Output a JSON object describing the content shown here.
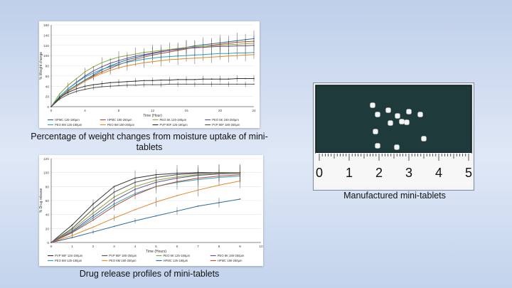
{
  "captions": {
    "moisture": "Percentage of weight changes from moisture uptake of mini-tablets",
    "release": "Drug release profiles of mini-tablets",
    "photo": "Manufactured mini-tablets"
  },
  "photo": {
    "ruler_labels": [
      "0",
      "1",
      "2",
      "3",
      "4",
      "5"
    ],
    "tablet_count": 13
  },
  "chart_data": [
    {
      "type": "line",
      "xlabel": "Time (Hour)",
      "ylabel": "% Weight change",
      "xlim": [
        0,
        24
      ],
      "ylim": [
        0,
        160
      ],
      "x_ticks": [
        0,
        4,
        8,
        12,
        16,
        20,
        24
      ],
      "y_ticks": [
        0,
        20,
        40,
        60,
        80,
        100,
        120,
        140,
        160
      ],
      "error_bars": true,
      "legend_position": "bottom",
      "x": [
        0,
        1,
        2,
        3,
        4,
        5,
        6,
        7,
        8,
        9,
        10,
        11,
        12,
        13,
        14,
        15,
        16,
        17,
        18,
        19,
        20,
        21,
        22,
        23,
        24
      ],
      "series": [
        {
          "name": "HPMC 125-180µm",
          "color": "#2e6b9e",
          "values": [
            0,
            18,
            32,
            42,
            52,
            62,
            72,
            80,
            86,
            92,
            96,
            100,
            104,
            107,
            110,
            113,
            116,
            119,
            121,
            123,
            125,
            127,
            129,
            131,
            133
          ]
        },
        {
          "name": "HPMC 180-250µm",
          "color": "#b04a3a",
          "values": [
            0,
            17,
            30,
            40,
            50,
            60,
            68,
            75,
            82,
            88,
            93,
            97,
            101,
            104,
            107,
            110,
            113,
            116,
            118,
            120,
            122,
            124,
            126,
            127,
            128
          ]
        },
        {
          "name": "PEO 8K 125-180µm",
          "color": "#8ba63a",
          "values": [
            0,
            25,
            42,
            55,
            68,
            78,
            86,
            92,
            97,
            100,
            103,
            106,
            108,
            110,
            112,
            114,
            116,
            117,
            118,
            119,
            120,
            121,
            122,
            123,
            124
          ]
        },
        {
          "name": "PEO 8K 180-250µm",
          "color": "#6a4f9a",
          "values": [
            0,
            20,
            35,
            48,
            60,
            70,
            78,
            85,
            90,
            95,
            99,
            102,
            105,
            108,
            110,
            112,
            114,
            115,
            116,
            117,
            118,
            118,
            119,
            119,
            120
          ]
        },
        {
          "name": "PEO 8M 125-180µm",
          "color": "#2fa0b8",
          "values": [
            0,
            20,
            35,
            47,
            58,
            66,
            73,
            78,
            83,
            87,
            90,
            93,
            95,
            97,
            98,
            99,
            100,
            101,
            102,
            103,
            104,
            104,
            105,
            105,
            106
          ]
        },
        {
          "name": "PEO 8M 180-250µm",
          "color": "#e08a2a",
          "values": [
            0,
            18,
            30,
            40,
            50,
            58,
            65,
            71,
            76,
            80,
            83,
            86,
            88,
            90,
            92,
            93,
            94,
            95,
            96,
            97,
            98,
            99,
            100,
            101,
            102
          ]
        },
        {
          "name": "PVP 90F 125-180µm",
          "color": "#333333",
          "values": [
            0,
            18,
            28,
            35,
            40,
            43,
            45,
            47,
            48,
            49,
            50,
            51,
            51,
            52,
            52,
            53,
            53,
            53,
            54,
            54,
            54,
            54,
            55,
            55,
            55
          ]
        },
        {
          "name": "PVP 90F 180-250µm",
          "color": "#555555",
          "values": [
            0,
            15,
            24,
            30,
            34,
            37,
            39,
            40,
            41,
            42,
            42,
            43,
            43,
            43,
            44,
            44,
            44,
            44,
            44,
            44,
            44,
            44,
            44,
            44,
            44
          ]
        }
      ]
    },
    {
      "type": "line",
      "xlabel": "Time (Hours)",
      "ylabel": "% Drug release",
      "xlim": [
        0,
        10
      ],
      "ylim": [
        0,
        120
      ],
      "x_ticks": [
        0,
        1,
        2,
        3,
        4,
        5,
        6,
        7,
        8,
        9,
        10
      ],
      "y_ticks": [
        0,
        20,
        40,
        60,
        80,
        100,
        120
      ],
      "error_bars": true,
      "legend_position": "bottom",
      "x": [
        0,
        1,
        2,
        3,
        4,
        5,
        6,
        7,
        8,
        9
      ],
      "series": [
        {
          "name": "PVP 90F 125-180µm",
          "color": "#333333",
          "values": [
            0,
            25,
            55,
            80,
            92,
            97,
            99,
            100,
            100,
            100
          ]
        },
        {
          "name": "PVP 90F 180-250µm",
          "color": "#555555",
          "values": [
            0,
            20,
            48,
            72,
            86,
            93,
            97,
            99,
            100,
            100
          ]
        },
        {
          "name": "PEO 8K 125-180µm",
          "color": "#8ba63a",
          "values": [
            0,
            18,
            42,
            65,
            80,
            89,
            94,
            97,
            99,
            100
          ]
        },
        {
          "name": "PEO 8K 180-250µm",
          "color": "#6a4f9a",
          "values": [
            0,
            16,
            38,
            60,
            76,
            86,
            92,
            96,
            98,
            99
          ]
        },
        {
          "name": "PEO 8M 125-180µm",
          "color": "#2fa0b8",
          "values": [
            0,
            15,
            35,
            55,
            70,
            80,
            86,
            90,
            93,
            95
          ]
        },
        {
          "name": "PEO 8M 180-250µm",
          "color": "#e08a2a",
          "values": [
            0,
            10,
            22,
            35,
            47,
            58,
            67,
            75,
            82,
            88
          ]
        },
        {
          "name": "HPMC 125-180µm",
          "color": "#2e6b9e",
          "values": [
            0,
            7,
            15,
            23,
            31,
            38,
            45,
            52,
            57,
            62
          ]
        },
        {
          "name": "HPMC 180-250µm",
          "color": "#b04a3a",
          "values": [
            0,
            14,
            32,
            52,
            68,
            80,
            87,
            92,
            95,
            97
          ]
        }
      ]
    }
  ]
}
